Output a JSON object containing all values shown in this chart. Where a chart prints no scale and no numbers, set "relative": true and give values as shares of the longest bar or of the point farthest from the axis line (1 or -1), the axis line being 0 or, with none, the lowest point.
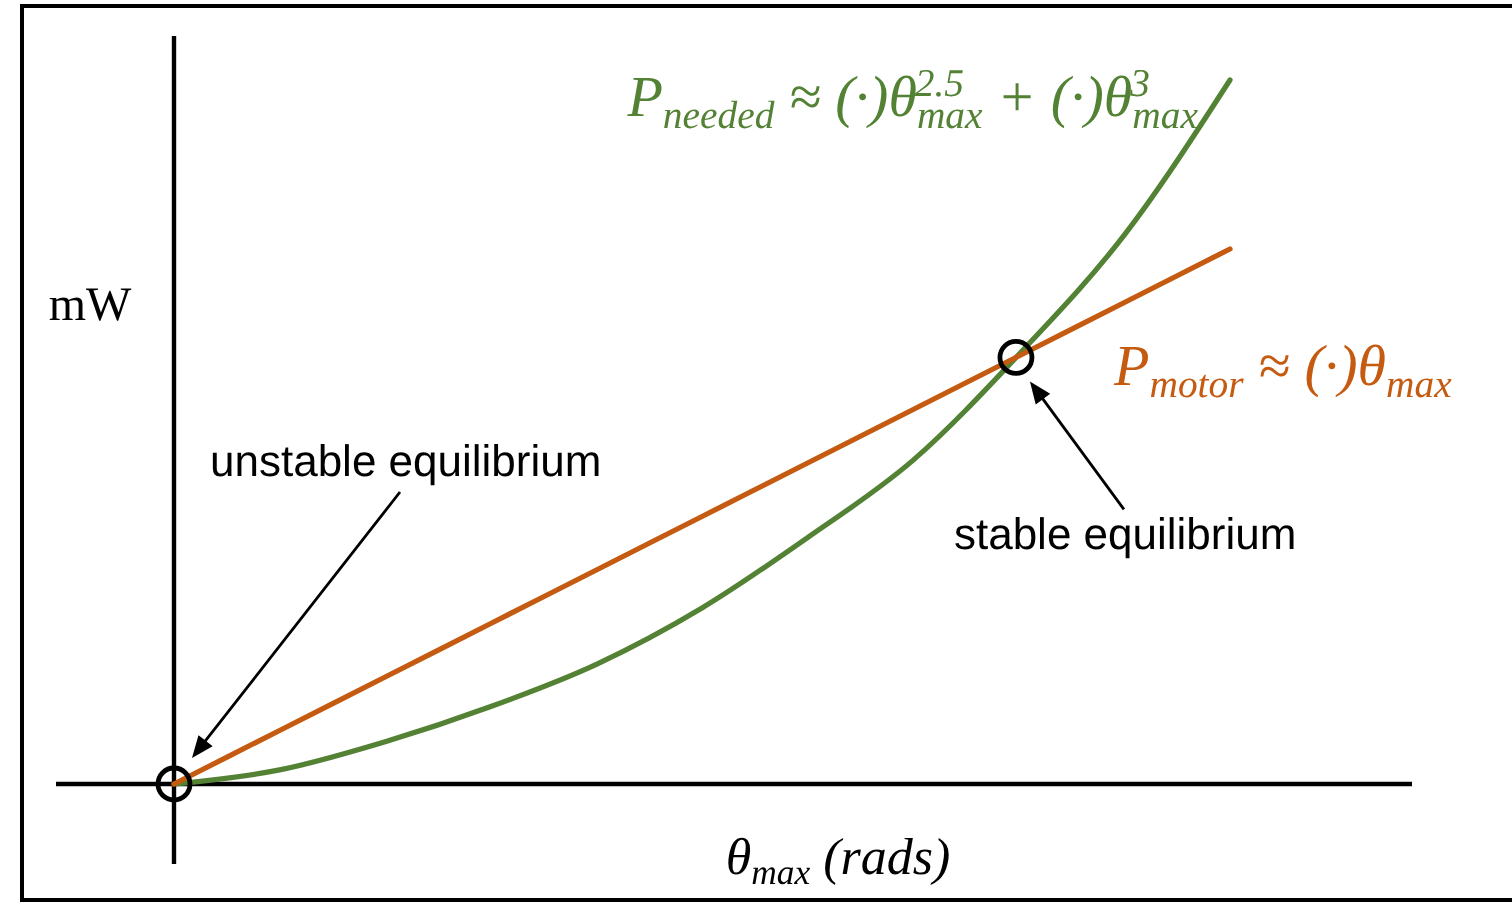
{
  "chart_data": {
    "type": "line",
    "relative": true,
    "xlabel": "θ$_{max}$ (rads)",
    "ylabel": "mW",
    "categories": [
      null,
      null,
      null,
      null,
      null,
      null,
      null,
      null,
      null,
      null,
      null
    ],
    "series": [
      {
        "name": "P$_{needed}$ ≈ (·)θ$_{max}$$^{2.5}$ + (·)θ$_{max}$$^{3}$",
        "color": "#548235",
        "values": [
          0,
          0.02,
          0.06,
          0.11,
          0.17,
          0.25,
          0.35,
          0.46,
          0.61,
          0.78,
          1
        ]
      },
      {
        "name": "P$_{motor}$ ≈ (·)θ$_{max}$",
        "color": "#c55a11",
        "values": [
          0,
          0.076,
          0.152,
          0.228,
          0.304,
          0.38,
          0.456,
          0.532,
          0.608,
          0.684,
          0.76
        ]
      }
    ],
    "annotations": [
      "unstable equilibrium",
      "stable equilibrium"
    ]
  }
}
